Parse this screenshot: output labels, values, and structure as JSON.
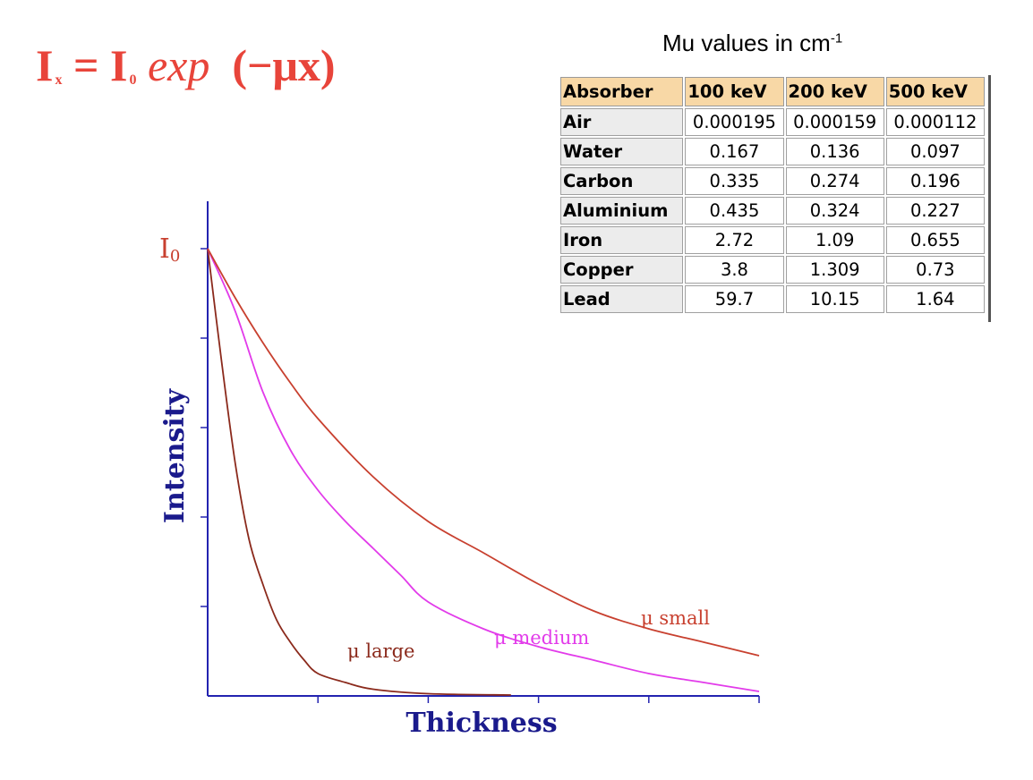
{
  "formula": {
    "lhs_var": "I",
    "lhs_sub": "x",
    "rhs_var": "I",
    "rhs_sub": "0",
    "func": "exp",
    "arg": "(−μx)",
    "color": "#e8443a"
  },
  "table": {
    "title": "Mu values in cm",
    "title_sup": "-1",
    "header_bg": "#f8d8a6",
    "columns": [
      "Absorber",
      "100 keV",
      "200 keV",
      "500 keV"
    ],
    "rows": [
      [
        "Air",
        "0.000195",
        "0.000159",
        "0.000112"
      ],
      [
        "Water",
        "0.167",
        "0.136",
        "0.097"
      ],
      [
        "Carbon",
        "0.335",
        "0.274",
        "0.196"
      ],
      [
        "Aluminium",
        "0.435",
        "0.324",
        "0.227"
      ],
      [
        "Iron",
        "2.72",
        "1.09",
        "0.655"
      ],
      [
        "Copper",
        "3.8",
        "1.309",
        "0.73"
      ],
      [
        "Lead",
        "59.7",
        "10.15",
        "1.64"
      ]
    ]
  },
  "chart_data": {
    "type": "line",
    "xlabel": "Thickness",
    "ylabel": "Intensity",
    "y_start_label": "I0",
    "x_ticks": 5,
    "y_ticks": 5,
    "xlim": [
      0,
      5
    ],
    "ylim": [
      0,
      1
    ],
    "grid": false,
    "series": [
      {
        "name": "μ large",
        "color": "#8b2a1c",
        "end_x": 2.75,
        "points": [
          [
            0,
            1.0
          ],
          [
            0.125,
            0.75
          ],
          [
            0.25,
            0.52
          ],
          [
            0.375,
            0.35
          ],
          [
            0.5,
            0.25
          ],
          [
            0.625,
            0.17
          ],
          [
            0.75,
            0.12
          ],
          [
            0.875,
            0.08
          ],
          [
            1.0,
            0.05
          ],
          [
            1.25,
            0.03
          ],
          [
            1.5,
            0.015
          ],
          [
            2.0,
            0.005
          ],
          [
            2.75,
            0.002
          ]
        ]
      },
      {
        "name": "μ medium",
        "color": "#e23bea",
        "points": [
          [
            0,
            1.0
          ],
          [
            0.25,
            0.86
          ],
          [
            0.5,
            0.68
          ],
          [
            0.75,
            0.55
          ],
          [
            1.0,
            0.46
          ],
          [
            1.25,
            0.39
          ],
          [
            1.5,
            0.33
          ],
          [
            1.75,
            0.27
          ],
          [
            2.0,
            0.21
          ],
          [
            2.5,
            0.15
          ],
          [
            3.0,
            0.11
          ],
          [
            3.5,
            0.08
          ],
          [
            4.0,
            0.05
          ],
          [
            4.5,
            0.03
          ],
          [
            5.0,
            0.01
          ]
        ]
      },
      {
        "name": "μ small",
        "color": "#c8402f",
        "points": [
          [
            0,
            1.0
          ],
          [
            0.25,
            0.89
          ],
          [
            0.5,
            0.79
          ],
          [
            0.75,
            0.7
          ],
          [
            1.0,
            0.62
          ],
          [
            1.5,
            0.49
          ],
          [
            2.0,
            0.39
          ],
          [
            2.5,
            0.32
          ],
          [
            3.0,
            0.25
          ],
          [
            3.5,
            0.19
          ],
          [
            4.0,
            0.15
          ],
          [
            4.5,
            0.12
          ],
          [
            5.0,
            0.09
          ]
        ]
      }
    ]
  }
}
